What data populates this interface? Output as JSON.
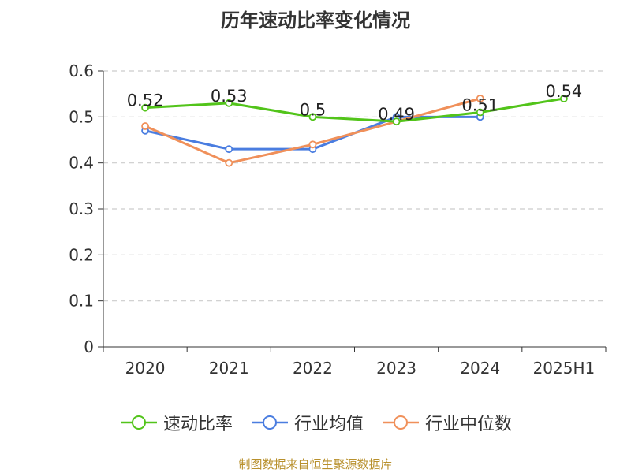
{
  "title": "历年速动比率变化情况",
  "source": "制图数据来自恒生聚源数据库",
  "chart_data": {
    "type": "line",
    "title": "历年速动比率变化情况",
    "xlabel": "",
    "ylabel": "",
    "categories": [
      "2020",
      "2021",
      "2022",
      "2023",
      "2024",
      "2025H1"
    ],
    "ylim": [
      0,
      0.6
    ],
    "yticks": [
      "0",
      "0.1",
      "0.2",
      "0.3",
      "0.4",
      "0.5",
      "0.6"
    ],
    "grid": true,
    "legend_position": "bottom",
    "series": [
      {
        "name": "速动比率",
        "color": "#52c41a",
        "values": [
          0.52,
          0.53,
          0.5,
          0.49,
          0.51,
          0.54
        ],
        "labels": [
          "0.52",
          "0.53",
          "0.5",
          "0.49",
          "0.51",
          "0.54"
        ]
      },
      {
        "name": "行业均值",
        "color": "#4a7de0",
        "values": [
          0.47,
          0.43,
          0.43,
          0.5,
          0.5,
          null
        ]
      },
      {
        "name": "行业中位数",
        "color": "#f0905a",
        "values": [
          0.48,
          0.4,
          0.44,
          0.49,
          0.54,
          null
        ]
      }
    ]
  }
}
